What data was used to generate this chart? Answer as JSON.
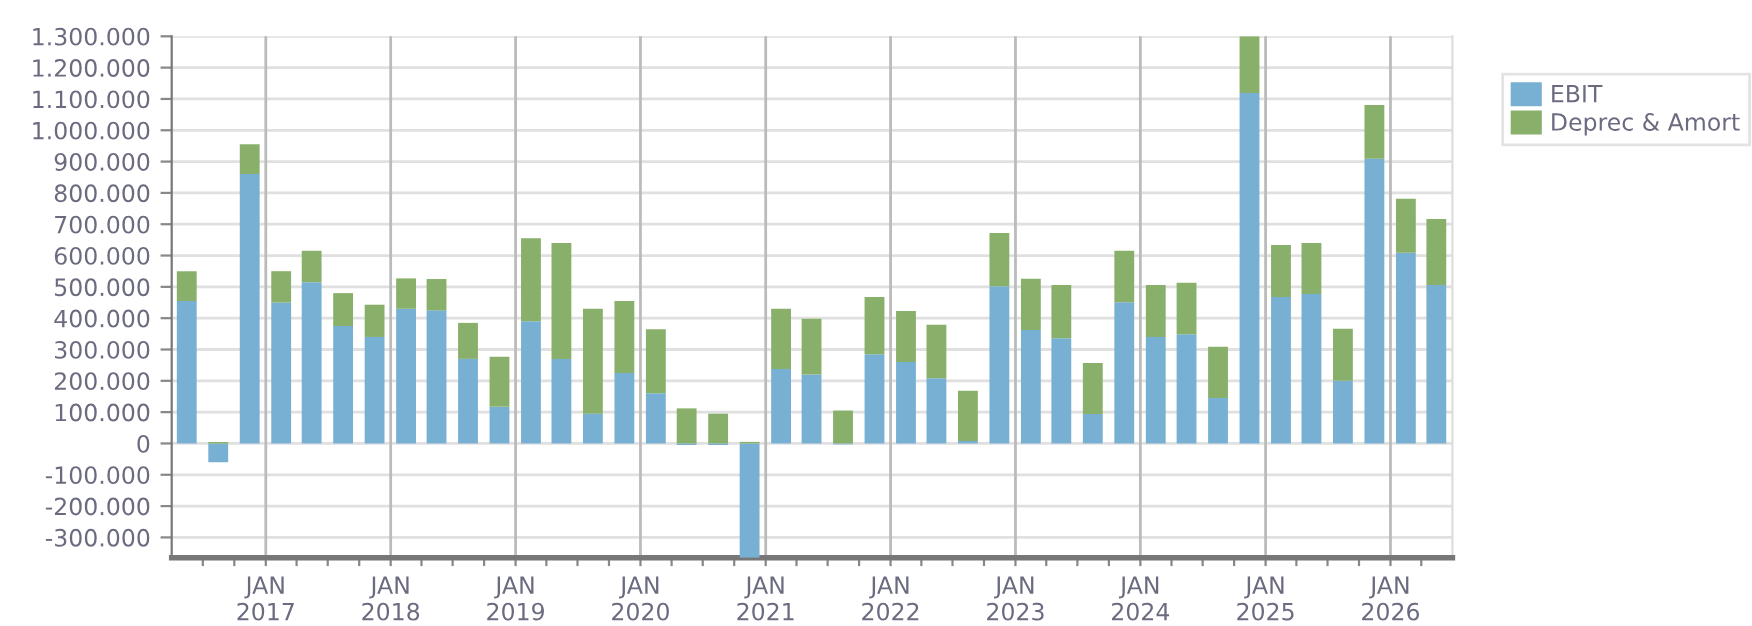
{
  "chart_data": {
    "type": "bar",
    "stacked": true,
    "x": [
      "2016-05-15",
      "2016-08-15",
      "2016-11-15",
      "2017-02-15",
      "2017-05-15",
      "2017-08-15",
      "2017-11-15",
      "2018-02-15",
      "2018-05-15",
      "2018-08-15",
      "2018-11-15",
      "2019-02-15",
      "2019-05-15",
      "2019-08-15",
      "2019-11-15",
      "2020-02-15",
      "2020-05-15",
      "2020-08-15",
      "2020-11-15",
      "2021-02-15",
      "2021-05-15",
      "2021-08-15",
      "2021-11-15",
      "2022-02-15",
      "2022-05-15",
      "2022-08-15",
      "2022-11-15",
      "2023-02-15",
      "2023-05-15",
      "2023-08-15",
      "2023-11-15",
      "2024-02-15",
      "2024-05-15",
      "2024-08-15",
      "2024-11-15",
      "2025-02-15",
      "2025-05-15",
      "2025-08-15",
      "2025-11-15",
      "2026-02-15",
      "2026-05-15"
    ],
    "series": [
      {
        "name": "EBIT",
        "color": "#78b0d3",
        "values": [
          455000,
          -60000,
          860000,
          450000,
          515000,
          375000,
          340000,
          430000,
          425000,
          270000,
          117000,
          390000,
          270000,
          95000,
          225000,
          160000,
          -5000,
          -5000,
          -365000,
          238000,
          220000,
          -3000,
          285000,
          260000,
          208000,
          8000,
          502000,
          362000,
          336000,
          94000,
          451000,
          340000,
          349000,
          145000,
          1119000,
          468000,
          477000,
          200000,
          909000,
          609000,
          506000
        ]
      },
      {
        "name": "Deprec & Amort",
        "color": "#88b06a",
        "values": [
          95000,
          5000,
          95000,
          100000,
          100000,
          105000,
          103000,
          97000,
          100000,
          115000,
          160000,
          265000,
          370000,
          335000,
          230000,
          205000,
          112000,
          95000,
          5000,
          192000,
          178000,
          105000,
          183000,
          163000,
          171000,
          160000,
          170000,
          164000,
          170000,
          163000,
          164000,
          166000,
          164000,
          164000,
          181000,
          166000,
          163000,
          166000,
          172000,
          172000,
          211000
        ]
      }
    ],
    "xlim": [
      "2016-04-01",
      "2026-07-01"
    ],
    "xticks": [
      {
        "value": "2016-07-01",
        "label": null
      },
      {
        "value": "2016-10-01",
        "label": null
      },
      {
        "value": "2017-01-01",
        "label": "JAN\n2017"
      },
      {
        "value": "2017-04-01",
        "label": null
      },
      {
        "value": "2017-07-01",
        "label": null
      },
      {
        "value": "2017-10-01",
        "label": null
      },
      {
        "value": "2018-01-01",
        "label": "JAN\n2018"
      },
      {
        "value": "2018-04-01",
        "label": null
      },
      {
        "value": "2018-07-01",
        "label": null
      },
      {
        "value": "2018-10-01",
        "label": null
      },
      {
        "value": "2019-01-01",
        "label": "JAN\n2019"
      },
      {
        "value": "2019-04-01",
        "label": null
      },
      {
        "value": "2019-07-01",
        "label": null
      },
      {
        "value": "2019-10-01",
        "label": null
      },
      {
        "value": "2020-01-01",
        "label": "JAN\n2020"
      },
      {
        "value": "2020-04-01",
        "label": null
      },
      {
        "value": "2020-07-01",
        "label": null
      },
      {
        "value": "2020-10-01",
        "label": null
      },
      {
        "value": "2021-01-01",
        "label": "JAN\n2021"
      },
      {
        "value": "2021-04-01",
        "label": null
      },
      {
        "value": "2021-07-01",
        "label": null
      },
      {
        "value": "2021-10-01",
        "label": null
      },
      {
        "value": "2022-01-01",
        "label": "JAN\n2022"
      },
      {
        "value": "2022-04-01",
        "label": null
      },
      {
        "value": "2022-07-01",
        "label": null
      },
      {
        "value": "2022-10-01",
        "label": null
      },
      {
        "value": "2023-01-01",
        "label": "JAN\n2023"
      },
      {
        "value": "2023-04-01",
        "label": null
      },
      {
        "value": "2023-07-01",
        "label": null
      },
      {
        "value": "2023-10-01",
        "label": null
      },
      {
        "value": "2024-01-01",
        "label": "JAN\n2024"
      },
      {
        "value": "2024-04-01",
        "label": null
      },
      {
        "value": "2024-07-01",
        "label": null
      },
      {
        "value": "2024-10-01",
        "label": null
      },
      {
        "value": "2025-01-01",
        "label": "JAN\n2025"
      },
      {
        "value": "2025-04-01",
        "label": null
      },
      {
        "value": "2025-07-01",
        "label": null
      },
      {
        "value": "2025-10-01",
        "label": null
      },
      {
        "value": "2026-01-01",
        "label": "JAN\n2026"
      },
      {
        "value": "2026-04-01",
        "label": null
      }
    ],
    "ylim": [
      -365000,
      1300000
    ],
    "yticks": [
      {
        "value": -300000,
        "label": "-300.000"
      },
      {
        "value": -200000,
        "label": "-200.000"
      },
      {
        "value": -100000,
        "label": "-100.000"
      },
      0,
      {
        "value": 100000,
        "label": "100.000"
      },
      {
        "value": 200000,
        "label": "200.000"
      },
      {
        "value": 300000,
        "label": "300.000"
      },
      {
        "value": 400000,
        "label": "400.000"
      },
      {
        "value": 500000,
        "label": "500.000"
      },
      {
        "value": 600000,
        "label": "600.000"
      },
      {
        "value": 700000,
        "label": "700.000"
      },
      {
        "value": 800000,
        "label": "800.000"
      },
      {
        "value": 900000,
        "label": "900.000"
      },
      {
        "value": 1000000,
        "label": "1.000.000"
      },
      {
        "value": 1100000,
        "label": "1.100.000"
      },
      {
        "value": 1200000,
        "label": "1.200.000"
      },
      {
        "value": 1300000,
        "label": "1.300.000"
      }
    ],
    "grid": true,
    "legend": "top right"
  }
}
